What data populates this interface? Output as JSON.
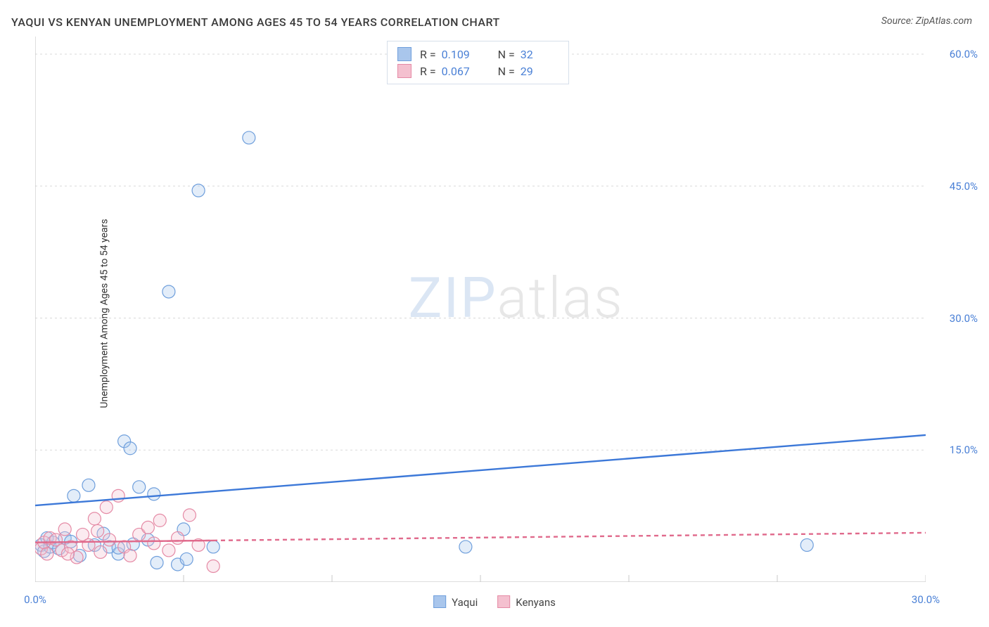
{
  "title": "YAQUI VS KENYAN UNEMPLOYMENT AMONG AGES 45 TO 54 YEARS CORRELATION CHART",
  "source": "Source: ZipAtlas.com",
  "yaxis_label": "Unemployment Among Ages 45 to 54 years",
  "watermark": {
    "part1": "ZIP",
    "part2": "atlas"
  },
  "chart": {
    "type": "scatter",
    "background_color": "#ffffff",
    "grid_color": "#d8d8d8",
    "grid_dash": "3,4",
    "axis_color": "#c9c9c9",
    "xlim": [
      0,
      30
    ],
    "ylim": [
      0,
      62
    ],
    "x_ticks_major": [
      0,
      5,
      10,
      15,
      20,
      25,
      30
    ],
    "x_tick_labels": {
      "0": "0.0%",
      "30": "30.0%"
    },
    "y_ticks": [
      15,
      30,
      45,
      60
    ],
    "y_tick_labels": [
      "15.0%",
      "30.0%",
      "45.0%",
      "60.0%"
    ],
    "marker_radius": 9,
    "marker_stroke_width": 1.2,
    "marker_fill_opacity": 0.32,
    "trend_line_width": 2.4,
    "series": [
      {
        "name": "Yaqui",
        "fill": "#a9c6ec",
        "stroke": "#6f9fdc",
        "trend_color": "#3c78d8",
        "trend_solid": true,
        "trend": {
          "y_at_x0": 8.7,
          "y_at_xmax": 16.7
        },
        "r": 0.109,
        "n": 32,
        "points": [
          [
            0.2,
            4.2
          ],
          [
            0.3,
            3.5
          ],
          [
            0.4,
            5.0
          ],
          [
            0.5,
            4.0
          ],
          [
            0.6,
            4.5
          ],
          [
            0.8,
            3.8
          ],
          [
            1.0,
            5.0
          ],
          [
            1.2,
            4.6
          ],
          [
            1.3,
            9.8
          ],
          [
            1.5,
            3.0
          ],
          [
            1.8,
            11.0
          ],
          [
            2.0,
            4.2
          ],
          [
            2.3,
            5.5
          ],
          [
            2.5,
            4.0
          ],
          [
            2.8,
            3.2
          ],
          [
            3.0,
            16.0
          ],
          [
            3.2,
            15.2
          ],
          [
            3.3,
            4.3
          ],
          [
            3.5,
            10.8
          ],
          [
            3.8,
            4.8
          ],
          [
            4.0,
            10.0
          ],
          [
            4.1,
            2.2
          ],
          [
            4.5,
            33.0
          ],
          [
            4.8,
            2.0
          ],
          [
            5.0,
            6.0
          ],
          [
            5.1,
            2.6
          ],
          [
            5.5,
            44.5
          ],
          [
            6.0,
            4.0
          ],
          [
            7.2,
            50.5
          ],
          [
            14.5,
            4.0
          ],
          [
            26.0,
            4.2
          ],
          [
            2.8,
            3.9
          ]
        ]
      },
      {
        "name": "Kenyans",
        "fill": "#f4c0cf",
        "stroke": "#e58aa5",
        "trend_color": "#e06a8c",
        "trend_solid": false,
        "trend": {
          "y_at_x0": 4.5,
          "y_at_xmax": 5.6
        },
        "r": 0.067,
        "n": 29,
        "points": [
          [
            0.2,
            3.8
          ],
          [
            0.3,
            4.5
          ],
          [
            0.4,
            3.2
          ],
          [
            0.5,
            5.0
          ],
          [
            0.7,
            4.8
          ],
          [
            0.9,
            3.6
          ],
          [
            1.0,
            6.0
          ],
          [
            1.2,
            4.0
          ],
          [
            1.4,
            2.8
          ],
          [
            1.6,
            5.4
          ],
          [
            1.8,
            4.2
          ],
          [
            2.0,
            7.2
          ],
          [
            2.2,
            3.4
          ],
          [
            2.4,
            8.5
          ],
          [
            2.5,
            4.8
          ],
          [
            2.8,
            9.8
          ],
          [
            3.0,
            4.0
          ],
          [
            3.2,
            3.0
          ],
          [
            3.5,
            5.4
          ],
          [
            3.8,
            6.2
          ],
          [
            4.0,
            4.4
          ],
          [
            4.2,
            7.0
          ],
          [
            4.5,
            3.6
          ],
          [
            4.8,
            5.0
          ],
          [
            5.2,
            7.6
          ],
          [
            5.5,
            4.2
          ],
          [
            6.0,
            1.8
          ],
          [
            2.1,
            5.8
          ],
          [
            1.1,
            3.2
          ]
        ]
      }
    ]
  },
  "bottom_legend": [
    {
      "label": "Yaqui",
      "fill": "#a9c6ec",
      "stroke": "#6f9fdc"
    },
    {
      "label": "Kenyans",
      "fill": "#f4c0cf",
      "stroke": "#e58aa5"
    }
  ],
  "top_legend": {
    "r_label": "R  =",
    "n_label": "N  =",
    "rows": [
      {
        "fill": "#a9c6ec",
        "stroke": "#6f9fdc",
        "r": "0.109",
        "n": "32"
      },
      {
        "fill": "#f4c0cf",
        "stroke": "#e58aa5",
        "r": "0.067",
        "n": "29"
      }
    ]
  }
}
